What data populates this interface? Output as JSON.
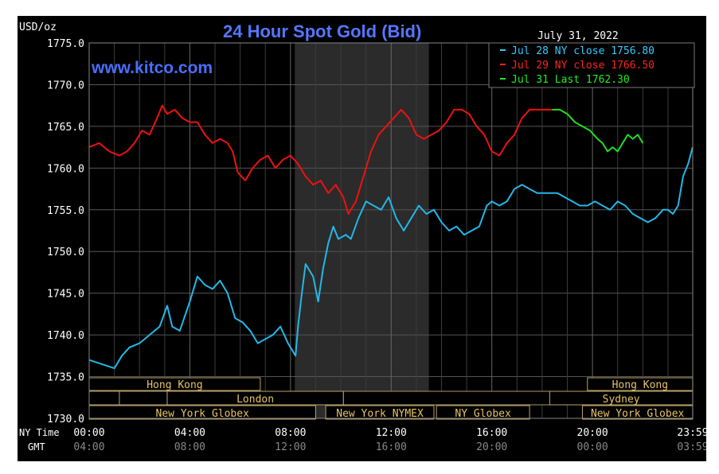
{
  "chart_data": {
    "type": "line",
    "title": "24 Hour Spot Gold (Bid)",
    "watermark": "www.kitco.com",
    "date": "July 31, 2022",
    "ylabel": "USD/oz",
    "ylim": [
      1730,
      1775
    ],
    "yticks": [
      "1775.0",
      "1770.0",
      "1765.0",
      "1760.0",
      "1755.0",
      "1750.0",
      "1745.0",
      "1740.0",
      "1735.0",
      "1730.0"
    ],
    "x_row_labels": [
      "NY Time",
      "GMT"
    ],
    "xticks_ny": [
      "00:00",
      "04:00",
      "08:00",
      "12:00",
      "16:00",
      "20:00",
      "23:59"
    ],
    "xticks_gmt": [
      "04:00",
      "08:00",
      "12:00",
      "16:00",
      "20:00",
      "00:00",
      "03:59"
    ],
    "legend": [
      {
        "label": "Jul 28 NY close 1756.80",
        "color": "#33ccff"
      },
      {
        "label": "Jul 29 NY close 1766.50",
        "color": "#ff2222"
      },
      {
        "label": "Jul 31 Last 1762.30",
        "color": "#22ee22"
      }
    ],
    "series": [
      {
        "name": "Jul 28",
        "color": "#22b8e8",
        "x_hours": [
          0,
          0.5,
          1,
          1.3,
          1.6,
          2,
          2.4,
          2.8,
          3.1,
          3.3,
          3.6,
          4,
          4.3,
          4.6,
          4.9,
          5.2,
          5.5,
          5.8,
          6.1,
          6.4,
          6.7,
          7,
          7.3,
          7.6,
          7.9,
          8.2,
          8.3,
          8.45,
          8.6,
          8.9,
          9.1,
          9.3,
          9.5,
          9.7,
          9.9,
          10.2,
          10.4,
          10.7,
          11,
          11.3,
          11.6,
          11.9,
          12.2,
          12.5,
          12.8,
          13.1,
          13.4,
          13.7,
          14,
          14.3,
          14.6,
          14.9,
          15.2,
          15.5,
          15.8,
          16,
          16.3,
          16.6,
          16.9,
          17.2,
          17.5,
          17.8,
          18,
          18.3,
          18.6,
          18.9,
          19.2,
          19.5,
          19.8,
          20.1,
          20.4,
          20.7,
          21,
          21.3,
          21.6,
          21.9,
          22.2,
          22.5,
          22.8,
          23,
          23.2,
          23.4,
          23.6,
          23.8,
          23.98
        ],
        "values": [
          1737,
          1736.5,
          1736,
          1737.5,
          1738.5,
          1739,
          1740,
          1741,
          1743.5,
          1741,
          1740.5,
          1744,
          1747,
          1746,
          1745.5,
          1746.5,
          1745,
          1742,
          1741.5,
          1740.5,
          1739,
          1739.5,
          1740,
          1741,
          1739,
          1737.5,
          1741,
          1745,
          1748.5,
          1747,
          1744,
          1748,
          1751,
          1753,
          1751.5,
          1752,
          1751.5,
          1754,
          1756,
          1755.5,
          1755,
          1756.5,
          1754,
          1752.5,
          1754,
          1755.5,
          1754.5,
          1755,
          1753.5,
          1752.5,
          1753,
          1752,
          1752.5,
          1753,
          1755.5,
          1756,
          1755.5,
          1756,
          1757.5,
          1758,
          1757.5,
          1757,
          1757,
          1757,
          1757,
          1756.5,
          1756,
          1755.5,
          1755.5,
          1756,
          1755.5,
          1755,
          1756,
          1755.5,
          1754.5,
          1754,
          1753.5,
          1754,
          1755,
          1755,
          1754.5,
          1755.5,
          1759,
          1760.5,
          1762.5
        ]
      },
      {
        "name": "Jul 29",
        "color": "#ee1111",
        "x_hours": [
          0,
          0.4,
          0.8,
          1.2,
          1.5,
          1.8,
          2.1,
          2.4,
          2.7,
          2.9,
          3.1,
          3.4,
          3.7,
          4,
          4.3,
          4.6,
          4.9,
          5.2,
          5.5,
          5.7,
          5.9,
          6.2,
          6.5,
          6.8,
          7.1,
          7.4,
          7.7,
          8,
          8.3,
          8.6,
          8.9,
          9.2,
          9.5,
          9.8,
          10.1,
          10.3,
          10.6,
          10.9,
          11.2,
          11.5,
          11.8,
          12.1,
          12.4,
          12.7,
          13,
          13.3,
          13.6,
          13.9,
          14.2,
          14.5,
          14.8,
          15.1,
          15.4,
          15.7,
          16,
          16.3,
          16.6,
          16.9,
          17.2,
          17.5,
          17.8,
          18.1,
          18.4
        ],
        "values": [
          1762.5,
          1763,
          1762,
          1761.5,
          1762,
          1763,
          1764.5,
          1764,
          1766,
          1767.5,
          1766.5,
          1767,
          1766,
          1765.5,
          1765.5,
          1764,
          1763,
          1763.5,
          1763,
          1762,
          1759.5,
          1758.5,
          1760,
          1761,
          1761.5,
          1760,
          1761,
          1761.5,
          1760.5,
          1759,
          1758,
          1758.5,
          1757,
          1758,
          1756.5,
          1754.5,
          1756,
          1759,
          1762,
          1764,
          1765,
          1766,
          1767,
          1766,
          1764,
          1763.5,
          1764,
          1764.5,
          1765.5,
          1767,
          1767,
          1766.5,
          1765,
          1764,
          1762,
          1761.5,
          1763,
          1764,
          1766,
          1767,
          1767,
          1767,
          1767
        ]
      },
      {
        "name": "Jul 31",
        "color": "#22dd22",
        "x_hours": [
          18.4,
          18.7,
          19,
          19.3,
          19.6,
          19.9,
          20.2,
          20.4,
          20.6,
          20.8,
          21,
          21.2,
          21.4,
          21.6,
          21.8,
          22
        ],
        "values": [
          1767,
          1767,
          1766.5,
          1765.5,
          1765,
          1764.5,
          1763.5,
          1763,
          1762,
          1762.5,
          1762,
          1763,
          1764,
          1763.5,
          1764,
          1763
        ]
      }
    ],
    "shaded_region_hours": [
      8.17,
      13.5
    ],
    "sessions": [
      {
        "label": "Hong Kong",
        "row": 1
      },
      {
        "label": "Hong Kong",
        "row": 1
      },
      {
        "label": "London",
        "row": 2
      },
      {
        "label": "Sydney",
        "row": 2
      },
      {
        "label": "New York Globex",
        "row": 3
      },
      {
        "label": "New York NYMEX",
        "row": 3
      },
      {
        "label": "NY Globex",
        "row": 3
      },
      {
        "label": "New York Globex",
        "row": 3
      }
    ],
    "grid": true
  }
}
